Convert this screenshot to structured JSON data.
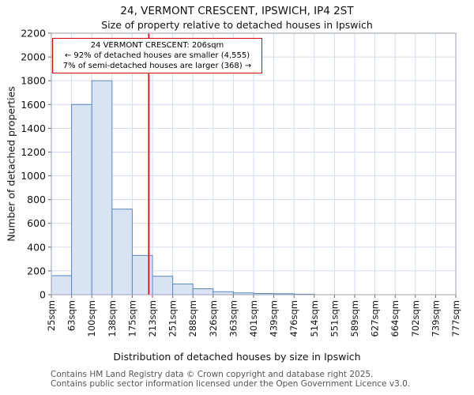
{
  "footer": {
    "line1": "Contains HM Land Registry data © Crown copyright and database right 2025.",
    "line2": "Contains public sector information licensed under the Open Government Licence v3.0."
  },
  "chart_data": {
    "type": "bar",
    "title": "24, VERMONT CRESCENT, IPSWICH, IP4 2ST",
    "subtitle": "Size of property relative to detached houses in Ipswich",
    "xlabel": "Distribution of detached houses by size in Ipswich",
    "ylabel": "Number of detached properties",
    "bin_edges_sqm": [
      25,
      63,
      100,
      138,
      175,
      213,
      251,
      288,
      326,
      363,
      401,
      439,
      476,
      514,
      551,
      589,
      627,
      664,
      702,
      739,
      777
    ],
    "tick_labels": [
      "25sqm",
      "63sqm",
      "100sqm",
      "138sqm",
      "175sqm",
      "213sqm",
      "251sqm",
      "288sqm",
      "326sqm",
      "363sqm",
      "401sqm",
      "439sqm",
      "476sqm",
      "514sqm",
      "551sqm",
      "589sqm",
      "627sqm",
      "664sqm",
      "702sqm",
      "739sqm",
      "777sqm"
    ],
    "values": [
      160,
      1600,
      1800,
      720,
      330,
      155,
      90,
      50,
      25,
      15,
      10,
      8,
      4,
      0,
      0,
      0,
      0,
      0,
      0,
      0
    ],
    "ylim": [
      0,
      2200
    ],
    "ytick_step": 200,
    "grid": true,
    "legend": "none",
    "marker": {
      "value_sqm": 206,
      "color": "#d40000"
    },
    "annotation": {
      "lines": [
        "24 VERMONT CRESCENT: 206sqm",
        "← 92% of detached houses are smaller (4,555)",
        "7% of semi-detached houses are larger (368) →"
      ],
      "border_color": "#d40000"
    },
    "bar_fill": "#d8e4f4",
    "bar_stroke": "#5b87c0",
    "grid_color": "#d4dbe8",
    "frame_color": "#9aa0ae",
    "tick_color": "#666666"
  }
}
